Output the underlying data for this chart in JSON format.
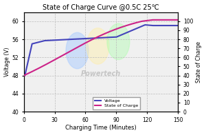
{
  "title": "State of Charge Curve @0.5C 25℃",
  "xlabel": "Charging Time (Minutes)",
  "ylabel_left": "Voltage (V)",
  "ylabel_right": "State of Charge",
  "xlim": [
    0,
    150
  ],
  "ylim_left": [
    40.0,
    62.0
  ],
  "ylim_right": [
    0,
    110
  ],
  "yticks_left": [
    40.0,
    44.0,
    48.0,
    52.0,
    56.0,
    60.0
  ],
  "yticks_right": [
    0,
    10,
    20,
    30,
    40,
    50,
    60,
    70,
    80,
    90,
    100
  ],
  "xticks": [
    0,
    30,
    60,
    90,
    120,
    150
  ],
  "voltage_color": "#4444bb",
  "soc_color": "#cc2288",
  "background_color": "#f0f0f0",
  "grid_color": "#bbbbbb",
  "watermark": "Powertech",
  "watermark_color": "#bbbbbb",
  "legend_voltage": "Voltage",
  "legend_soc": "State of Charge",
  "blob1_color": "#aaccff",
  "blob2_color": "#ffeeaa",
  "blob3_color": "#aaffaa"
}
